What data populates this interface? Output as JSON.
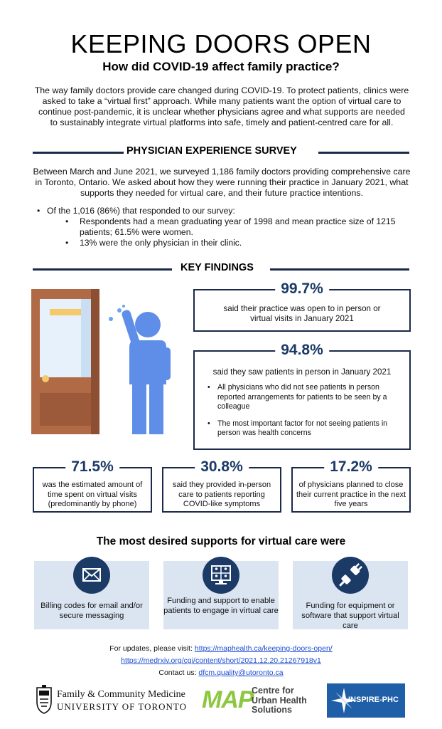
{
  "header": {
    "title": "KEEPING DOORS OPEN",
    "subtitle": "How did COVID-19 affect family practice?"
  },
  "intro": "The way family doctors provide care changed during COVID-19. To protect patients, clinics were asked to take a “virtual first” approach. While many patients want the option of virtual care to continue post-pandemic, it is unclear whether physicians agree and what supports are needed to sustainably integrate virtual platforms into safe, timely and patient-centred care for all.",
  "survey": {
    "heading": "PHYSICIAN EXPERIENCE SURVEY",
    "text": "Between March and June 2021, we surveyed 1,186 family doctors providing comprehensive care in Toronto, Ontario. We asked about how they were running their practice in January 2021, what supports they needed for virtual care, and their future practice intentions.",
    "bullet_main": "Of the 1,016 (86%) that responded to our survey:",
    "sub_bullets": [
      "Respondents had a mean graduating year of 1998 and mean practice size of 1215 patients; 61.5% were women.",
      "13% were the only physician in their clinic."
    ]
  },
  "findings": {
    "heading": "KEY FINDINGS",
    "stat1": {
      "value": "99.7%",
      "text": "said their practice was open to in person or virtual visits in January 2021"
    },
    "stat2": {
      "value": "94.8%",
      "text": "said they saw patients in person in January 2021",
      "bullets": [
        "All physicians who did not see patients in person reported arrangements for patients to be seen by a colleague",
        "The most important factor for not seeing patients in person was health concerns"
      ]
    },
    "stat3": {
      "value": "71.5%",
      "text": "was the estimated amount of time spent on virtual visits (predominantly by phone)"
    },
    "stat4": {
      "value": "30.8%",
      "text": "said they provided in-person care to patients reporting COVID-like symptoms"
    },
    "stat5": {
      "value": "17.2%",
      "text": "of physicians planned to close their current practice in the next five years"
    }
  },
  "supports": {
    "heading": "The most desired supports for virtual care were",
    "items": [
      {
        "icon": "envelope-icon",
        "text": "Billing codes for email and/or secure messaging"
      },
      {
        "icon": "video-call-icon",
        "text": "Funding and support to enable patients to engage in virtual care"
      },
      {
        "icon": "plug-icon",
        "text": "Funding for equipment or software that support virtual care"
      }
    ]
  },
  "footer": {
    "updates_label": "For updates, please visit:",
    "link1": "https://maphealth.ca/keeping-doors-open/",
    "link2": "https://medrxiv.org/cgi/content/short/2021.12.20.21267918v1",
    "contact_label": "Contact us:",
    "email": "dfcm.quality@utoronto.ca"
  },
  "logos": {
    "uoft_line1": "Family & Community Medicine",
    "uoft_line2": "UNIVERSITY OF TORONTO",
    "map_mark": "MAP",
    "map_line1": "Centre for",
    "map_line2": "Urban Health",
    "map_line3": "Solutions",
    "inspire": "INSPIRE-PHC"
  },
  "colors": {
    "navy": "#1b2a4a",
    "stat_blue": "#1b3a66",
    "support_bg": "#dbe5f1",
    "map_green": "#8dc63f",
    "inspire_blue": "#1f5fa8"
  }
}
